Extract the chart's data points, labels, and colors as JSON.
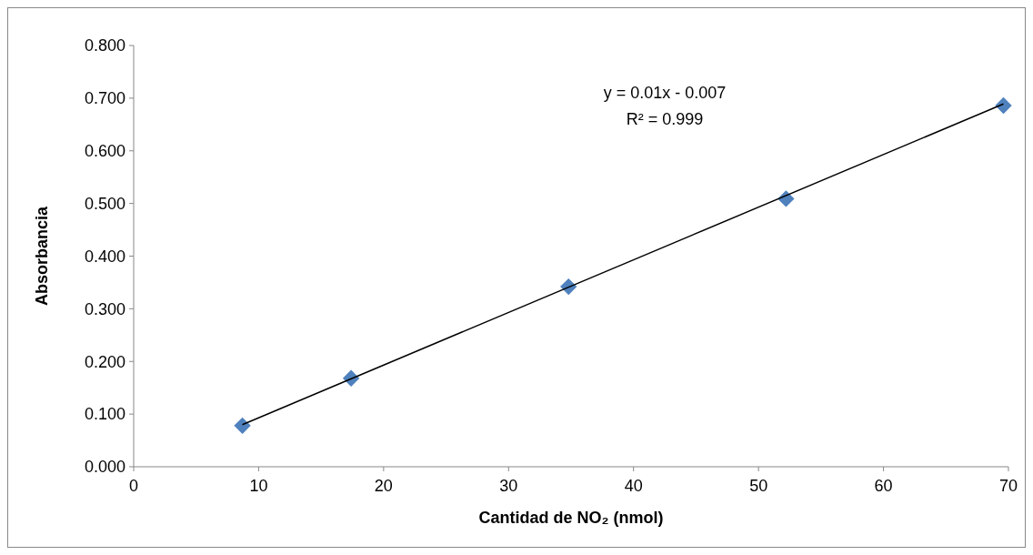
{
  "chart_data": {
    "type": "scatter",
    "xlabel": "Cantidad de NO₂ (nmol)",
    "ylabel": "Absorbancia",
    "xlim": [
      0,
      70
    ],
    "xticks": [
      0,
      10,
      20,
      30,
      40,
      50,
      60,
      70
    ],
    "ylim": [
      0,
      0.8
    ],
    "yticks": [
      {
        "value": 0,
        "label": "0.000"
      },
      {
        "value": 0.1,
        "label": "0.100"
      },
      {
        "value": 0.2,
        "label": "0.200"
      },
      {
        "value": 0.3,
        "label": "0.300"
      },
      {
        "value": 0.4,
        "label": "0.400"
      },
      {
        "value": 0.5,
        "label": "0.500"
      },
      {
        "value": 0.6,
        "label": "0.600"
      },
      {
        "value": 0.7,
        "label": "0.700"
      },
      {
        "value": 0.8,
        "label": "0.800"
      }
    ],
    "grid": false,
    "marker": "diamond",
    "series": [
      {
        "color": "#4f81bd",
        "x": [
          8.7,
          17.4,
          34.8,
          52.2,
          69.6
        ],
        "values": [
          0.078,
          0.168,
          0.342,
          0.509,
          0.686
        ]
      },
      {
        "type": "line",
        "color": "#000000",
        "x": [
          8.7,
          69.6
        ],
        "values": [
          0.08,
          0.689
        ],
        "marker": "none"
      }
    ],
    "annotations": [
      {
        "text": "y = 0.01x - 0.007"
      },
      {
        "text": "R² = 0.999"
      }
    ]
  }
}
